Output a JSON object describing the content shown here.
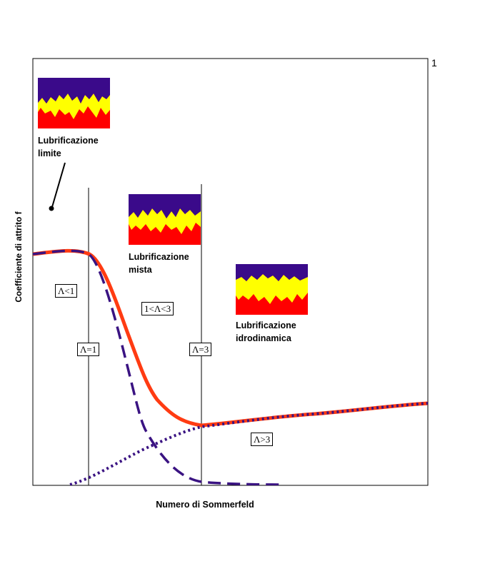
{
  "page_number": "1",
  "axes": {
    "ylabel": "Coefficiente di attrito f",
    "xlabel": "Numero di Sommerfeld"
  },
  "regimes": {
    "boundary": "Lubrificazione\nlimite",
    "mixed": "Lubrificazione\nmista",
    "hydrodynamic": "Lubrificazione\nidrodinamica"
  },
  "lambda_labels": {
    "lt1": "Λ<1",
    "eq1": "Λ=1",
    "between": "1<Λ<3",
    "eq3": "Λ=3",
    "gt3": "Λ>3"
  },
  "colors": {
    "total_curve": "#ff3b12",
    "component_curves": "#3a1382",
    "upper_surface": "#3a0a8a",
    "lubricant": "#ffff00",
    "lower_surface": "#ff0000"
  }
}
